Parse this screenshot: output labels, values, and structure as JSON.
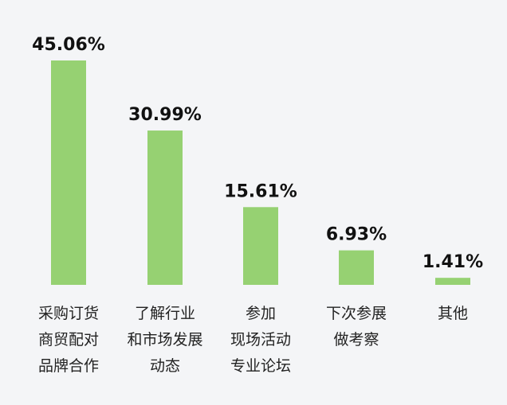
{
  "chart_data": {
    "type": "bar",
    "title": "",
    "xlabel": "",
    "ylabel": "",
    "ylim": [
      0,
      45.06
    ],
    "grid": false,
    "legend": "none",
    "categories": [
      [
        "采购订货",
        "商贸配对",
        "品牌合作"
      ],
      [
        "了解行业",
        "和市场发展",
        "动态"
      ],
      [
        "参加",
        "现场活动",
        "专业论坛"
      ],
      [
        "下次参展",
        "做考察"
      ],
      [
        "其他"
      ]
    ],
    "values": [
      45.06,
      30.99,
      15.61,
      6.93,
      1.41
    ],
    "value_labels": [
      "45.06%",
      "30.99%",
      "15.61%",
      "6.93%",
      "1.41%"
    ],
    "colors": {
      "bar": "#96d172"
    }
  }
}
